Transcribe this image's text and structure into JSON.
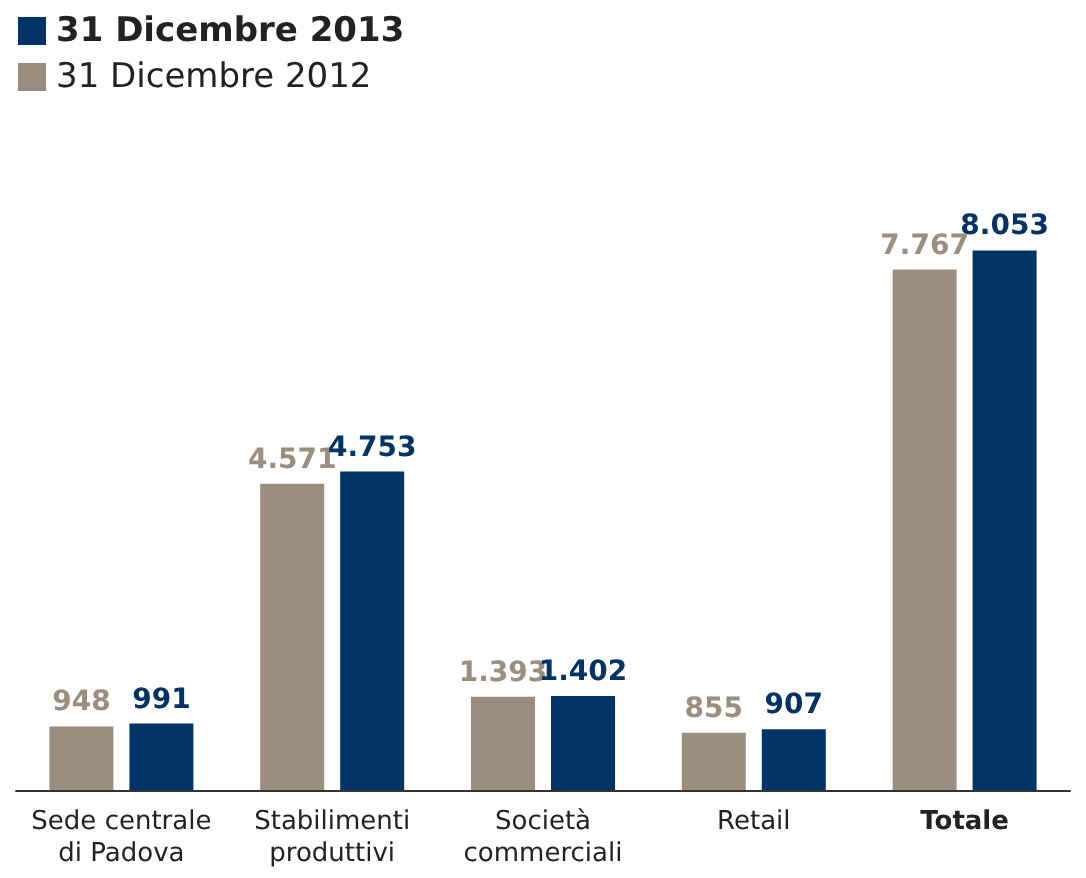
{
  "chart_data": {
    "type": "bar",
    "categories": [
      "Sede centrale\ndi Padova",
      "Stabilimenti\nproduttivi",
      "Società\ncommerciali",
      "Retail",
      "Totale"
    ],
    "series": [
      {
        "name": "31 Dicembre 2012",
        "color": "#9c8e7e",
        "values": [
          948,
          4571,
          1393,
          855,
          7767
        ],
        "value_labels": [
          "948",
          "4.571",
          "1.393",
          "855",
          "7.767"
        ]
      },
      {
        "name": "31 Dicembre 2013",
        "color": "#003466",
        "values": [
          991,
          4753,
          1402,
          907,
          8053
        ],
        "value_labels": [
          "991",
          "4.753",
          "1.402",
          "907",
          "8.053"
        ]
      }
    ],
    "legend": "top left",
    "grid": false,
    "tick_labels": "x"
  }
}
